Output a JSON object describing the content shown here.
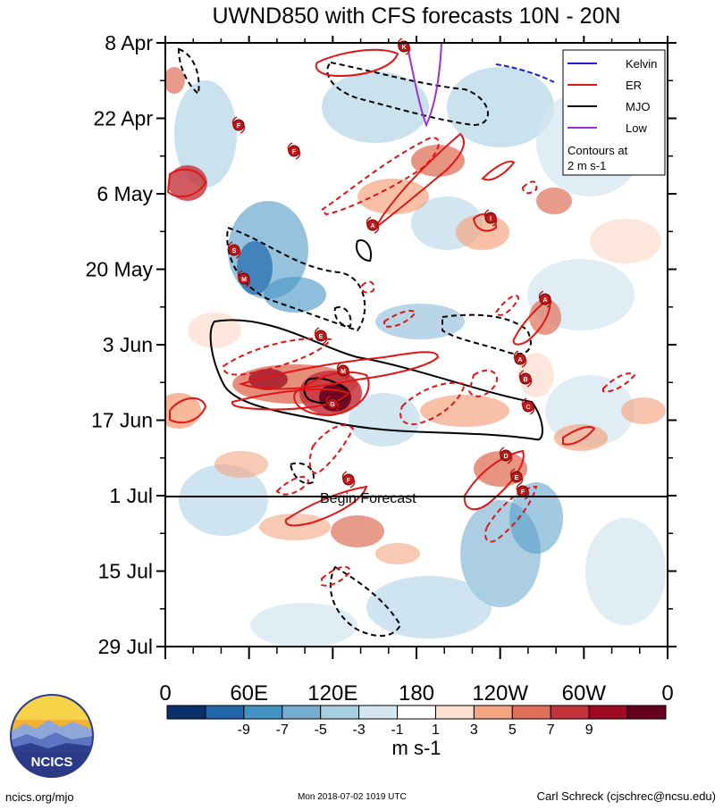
{
  "chart_data": {
    "type": "heatmap",
    "title": "UWND850 with CFS forecasts  10N - 20N",
    "x_ticks": [
      "0",
      "60E",
      "120E",
      "180",
      "120W",
      "60W",
      "0"
    ],
    "y_ticks": [
      "8 Apr",
      "22 Apr",
      "6 May",
      "20 May",
      "3 Jun",
      "17 Jun",
      "1 Jul",
      "15 Jul",
      "29 Jul"
    ],
    "forecast_line_label": "Begin Forecast",
    "legend": [
      {
        "name": "Kelvin",
        "color": "#1f1fd6"
      },
      {
        "name": "ER",
        "color": "#e01515"
      },
      {
        "name": "MJO",
        "color": "#000000"
      },
      {
        "name": "Low",
        "color": "#9b30d8"
      }
    ],
    "legend_note_1": "Contours at",
    "legend_note_2": "2 m s-1",
    "colorbar": {
      "ticks": [
        "-9",
        "-7",
        "-5",
        "-3",
        "-1",
        "1",
        "3",
        "5",
        "7",
        "9"
      ],
      "colors": [
        "#08306b",
        "#2166ac",
        "#4393c3",
        "#74add1",
        "#a6cee3",
        "#d4e6f1",
        "#ffffff",
        "#fde0d2",
        "#f4a582",
        "#e0705a",
        "#c6323c",
        "#9e0a22",
        "#67001f"
      ],
      "unit": "m s-1"
    },
    "storms": [
      "K",
      "F",
      "F",
      "A",
      "I",
      "S",
      "M",
      "E",
      "M",
      "G",
      "A",
      "A",
      "B",
      "C",
      "D",
      "E",
      "F",
      "F"
    ]
  },
  "logo": {
    "text": "NCICS"
  },
  "footer": {
    "left": "ncics.org/mjo",
    "middle": "Mon 2018-07-02 1019 UTC",
    "right": "Carl Schreck (cjschrec@ncsu.edu)"
  }
}
